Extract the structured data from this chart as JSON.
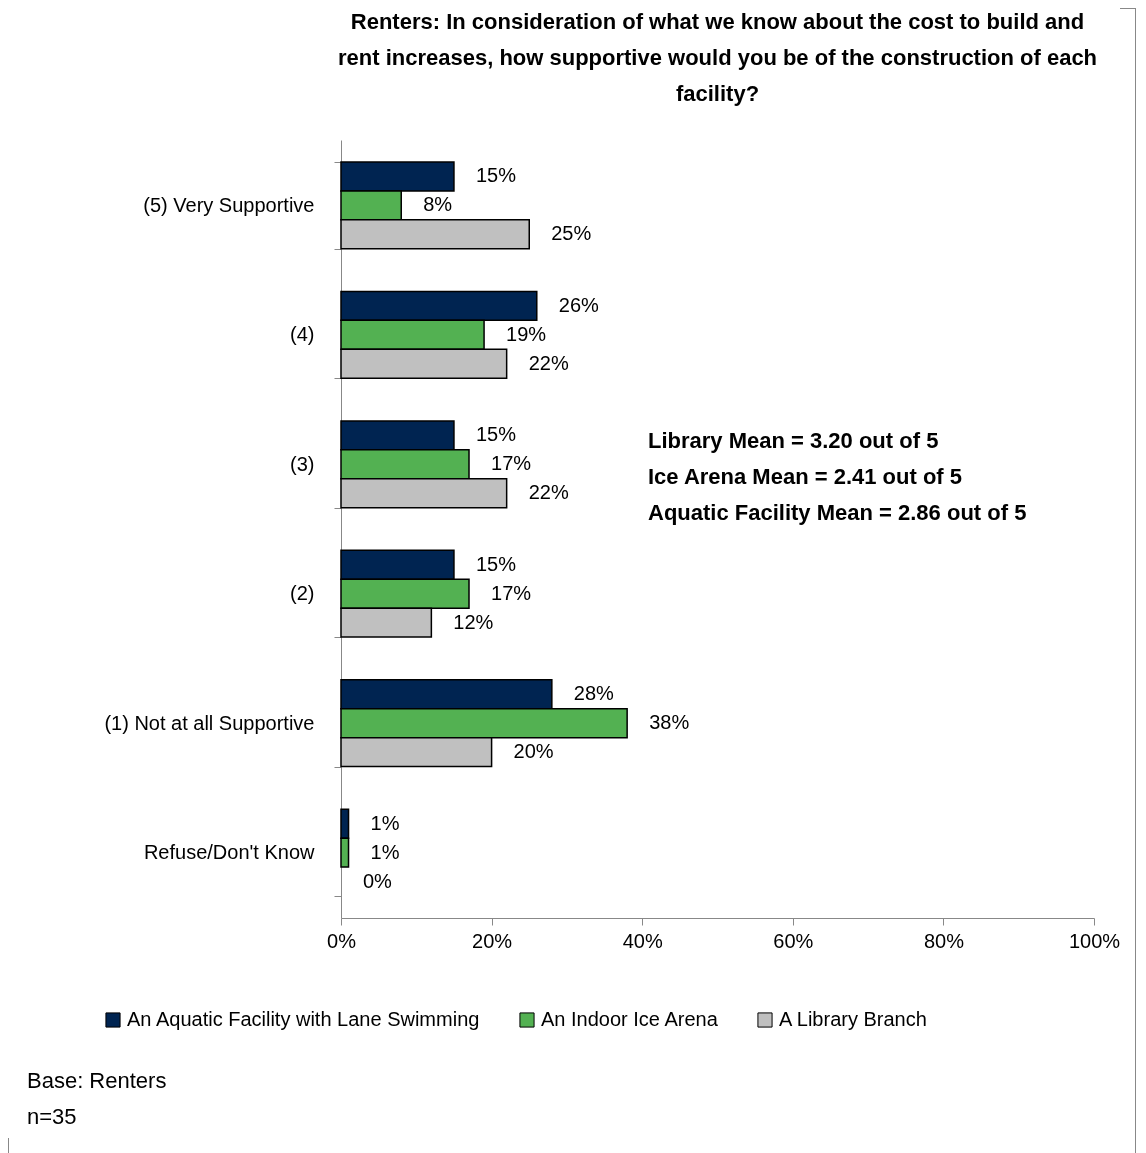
{
  "chart_data": {
    "type": "bar",
    "orientation": "horizontal",
    "title": "Renters: In consideration of what we know about the cost to build and rent increases, how supportive would you be of the construction of each facility?",
    "categories": [
      "(5) Very Supportive",
      "(4)",
      "(3)",
      "(2)",
      "(1) Not at all Supportive",
      "Refuse/Don't Know"
    ],
    "series": [
      {
        "name": "An Aquatic Facility with Lane Swimming",
        "color": "#002451",
        "values": [
          15,
          26,
          15,
          15,
          28,
          1
        ]
      },
      {
        "name": "An Indoor Ice Arena",
        "color": "#53b152",
        "values": [
          8,
          19,
          17,
          17,
          38,
          1
        ]
      },
      {
        "name": "A Library Branch",
        "color": "#c0c0c0",
        "values": [
          25,
          22,
          22,
          12,
          20,
          0
        ]
      }
    ],
    "xlim": [
      0,
      100
    ],
    "xticks": [
      {
        "value": 0,
        "label": "0%"
      },
      {
        "value": 20,
        "label": "20%"
      },
      {
        "value": 40,
        "label": "40%"
      },
      {
        "value": 60,
        "label": "60%"
      },
      {
        "value": 80,
        "label": "80%"
      },
      {
        "value": 100,
        "label": "100%"
      }
    ],
    "value_labels": [
      [
        "15%",
        "26%",
        "15%",
        "15%",
        "28%",
        "1%"
      ],
      [
        "8%",
        "19%",
        "17%",
        "17%",
        "38%",
        "1%"
      ],
      [
        "25%",
        "22%",
        "22%",
        "12%",
        "20%",
        "0%"
      ]
    ],
    "grid": false,
    "legend": "bottom",
    "annotations": [
      "Library Mean = 3.20 out of 5",
      "Ice Arena Mean = 2.41 out of 5",
      "Aquatic Facility Mean = 2.86 out of 5",
      "Base: Renters",
      "n=35"
    ]
  }
}
